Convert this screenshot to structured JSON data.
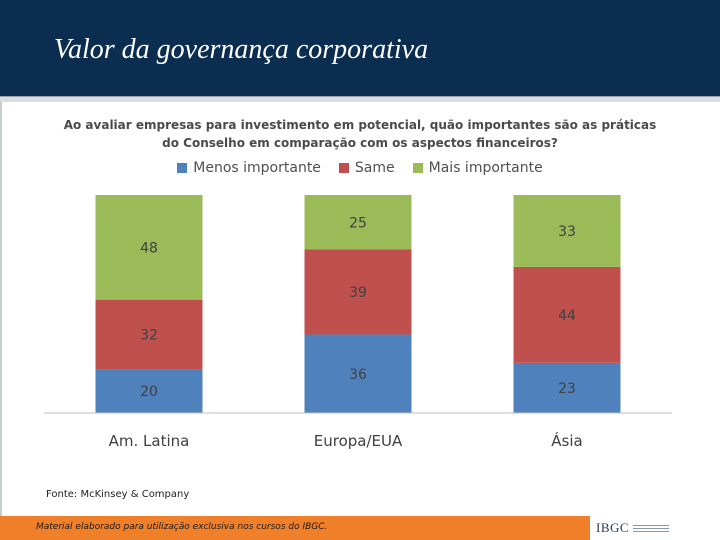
{
  "slide": {
    "title": "Valor da governança corporativa",
    "source": "Fonte: McKinsey & Company",
    "footer_note": "Material elaborado para utilização exclusiva nos cursos do IBGC.",
    "logo_text": "IBGC"
  },
  "colors": {
    "header_bg": "#0a2d50",
    "footer_bg": "#f07f2a",
    "menos": "#4f81bd",
    "same": "#c0504d",
    "mais": "#9bbb59"
  },
  "chart_data": {
    "type": "bar",
    "stacked": true,
    "title": "Ao avaliar empresas para investimento em potencial, quão importantes são as práticas do Conselho em comparação com os aspectos financeiros?",
    "title_lines": [
      "Ao avaliar empresas para investimento em potencial, quão importantes são as práticas",
      "do Conselho em comparação com os aspectos financeiros?"
    ],
    "categories": [
      "Am. Latina",
      "Europa/EUA",
      "Ásia"
    ],
    "series": [
      {
        "name": "Menos importante",
        "values": [
          20,
          36,
          23
        ],
        "color": "#4f81bd"
      },
      {
        "name": "Same",
        "values": [
          32,
          39,
          44
        ],
        "color": "#c0504d"
      },
      {
        "name": "Mais importante",
        "values": [
          48,
          25,
          33
        ],
        "color": "#9bbb59"
      }
    ],
    "ylim": [
      0,
      100
    ],
    "grid": false,
    "legend_position": "top",
    "data_labels": true
  }
}
